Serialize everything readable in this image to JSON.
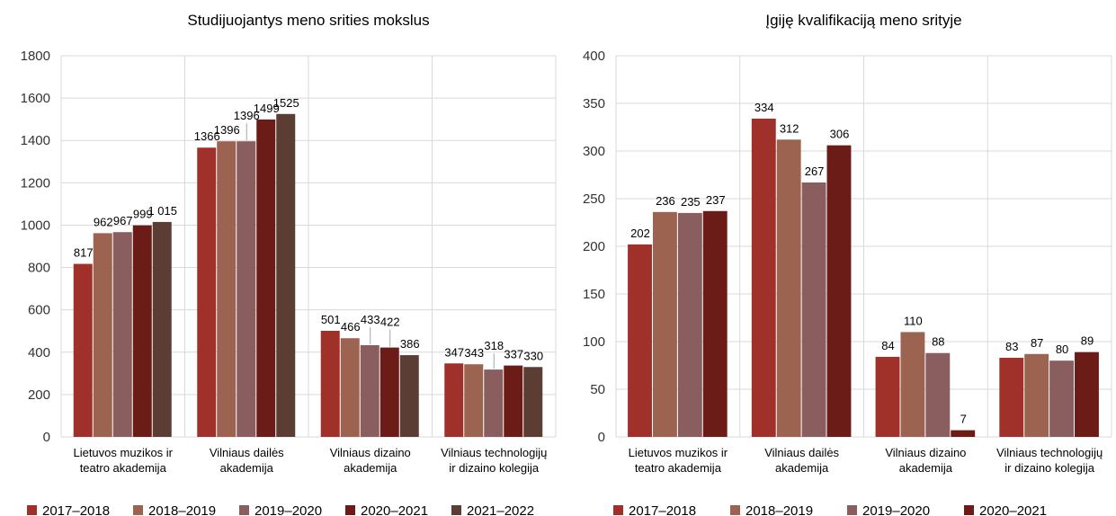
{
  "colors": {
    "series": [
      "#a0302a",
      "#9c6450",
      "#8a5e5e",
      "#6b1c16",
      "#5c3d33"
    ],
    "grid": "#d9d9d9",
    "leader": "#a6a6a6"
  },
  "chart_data": [
    {
      "type": "bar",
      "title": "Studijuojantys meno srities mokslus",
      "ylim": [
        0,
        1800
      ],
      "ytick_step": 200,
      "grid": true,
      "legend": "bottom",
      "categories": [
        [
          "Lietuvos muzikos ir",
          "teatro akademija"
        ],
        [
          "Vilniaus dailės",
          "akademija"
        ],
        [
          "Vilniaus dizaino",
          "akademija"
        ],
        [
          "Vilniaus technologijų",
          "ir dizaino kolegija"
        ]
      ],
      "series": [
        {
          "name": "2017–2018",
          "values": [
            817,
            1366,
            501,
            347
          ],
          "labels": [
            "817",
            "1366",
            "501",
            "347"
          ]
        },
        {
          "name": "2018–2019",
          "values": [
            962,
            1396,
            466,
            343
          ],
          "labels": [
            "962",
            "1396",
            "466",
            "343"
          ]
        },
        {
          "name": "2019–2020",
          "values": [
            967,
            1396,
            433,
            318
          ],
          "labels": [
            "967",
            "1396",
            "433",
            "318"
          ]
        },
        {
          "name": "2020–2021",
          "values": [
            999,
            1499,
            422,
            337
          ],
          "labels": [
            "999",
            "1499",
            "422",
            "337"
          ]
        },
        {
          "name": "2021–2022",
          "values": [
            1015,
            1525,
            386,
            330
          ],
          "labels": [
            "1 015",
            "1525",
            "386",
            "330"
          ]
        }
      ]
    },
    {
      "type": "bar",
      "title": "Įgiję kvalifikaciją meno srityje",
      "ylim": [
        0,
        400
      ],
      "ytick_step": 50,
      "grid": true,
      "legend": "bottom",
      "categories": [
        [
          "Lietuvos muzikos ir",
          "teatro akademija"
        ],
        [
          "Vilniaus dailės",
          "akademija"
        ],
        [
          "Vilniaus dizaino",
          "akademija"
        ],
        [
          "Vilniaus technologijų",
          "ir dizaino kolegija"
        ]
      ],
      "series": [
        {
          "name": "2017–2018",
          "values": [
            202,
            334,
            84,
            83
          ],
          "labels": [
            "202",
            "334",
            "84",
            "83"
          ]
        },
        {
          "name": "2018–2019",
          "values": [
            236,
            312,
            110,
            87
          ],
          "labels": [
            "236",
            "312",
            "110",
            "87"
          ]
        },
        {
          "name": "2019–2020",
          "values": [
            235,
            267,
            88,
            80
          ],
          "labels": [
            "235",
            "267",
            "88",
            "80"
          ]
        },
        {
          "name": "2020–2021",
          "values": [
            237,
            306,
            7,
            89
          ],
          "labels": [
            "237",
            "306",
            "7",
            "89"
          ]
        }
      ]
    }
  ]
}
